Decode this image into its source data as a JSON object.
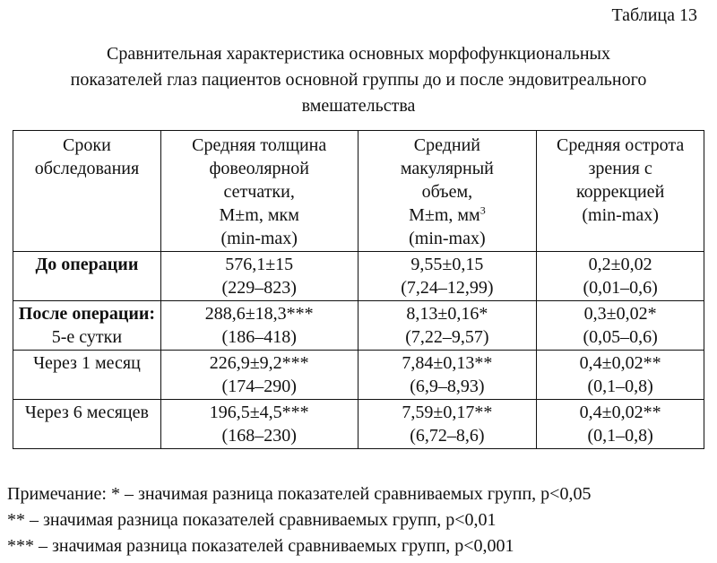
{
  "table_number": "Таблица 13",
  "title_lines": [
    "Сравнительная характеристика основных морфофункциональных",
    "показателей глаз пациентов основной группы до и после эндовитреального",
    "вмешательства"
  ],
  "headers": {
    "col1": [
      "Сроки",
      "обследования"
    ],
    "col2": [
      "Средняя толщина",
      "фовеолярной",
      "сетчатки,",
      "M±m, мкм",
      "(min-max)"
    ],
    "col3": [
      "Средний",
      "макулярный",
      "объем,",
      "M±m, мм",
      "3",
      "(min-max)"
    ],
    "col4": [
      "Средняя острота",
      "зрения с",
      "коррекцией",
      "(min-max)"
    ]
  },
  "rows": [
    {
      "label_bold": "До операции",
      "label_rest": "",
      "thickness": [
        "576,1±15",
        "(229–823)"
      ],
      "volume": [
        "9,55±0,15",
        "(7,24–12,99)"
      ],
      "acuity": [
        "0,2±0,02",
        "(0,01–0,6)"
      ]
    },
    {
      "label_bold": "После операции:",
      "label_rest": "5-е сутки",
      "thickness": [
        "288,6±18,3***",
        "(186–418)"
      ],
      "volume": [
        "8,13±0,16*",
        "(7,22–9,57)"
      ],
      "acuity": [
        "0,3±0,02*",
        "(0,05–0,6)"
      ]
    },
    {
      "label_bold": "",
      "label_rest": "Через 1 месяц",
      "thickness": [
        "226,9±9,2***",
        "(174–290)"
      ],
      "volume": [
        "7,84±0,13**",
        "(6,9–8,93)"
      ],
      "acuity": [
        "0,4±0,02**",
        "(0,1–0,8)"
      ]
    },
    {
      "label_bold": "",
      "label_rest": "Через 6 месяцев",
      "thickness": [
        "196,5±4,5***",
        "(168–230)"
      ],
      "volume": [
        "7,59±0,17**",
        "(6,72–8,6)"
      ],
      "acuity": [
        "0,4±0,02**",
        "(0,1–0,8)"
      ]
    }
  ],
  "notes": [
    "Примечание: * – значимая разница показателей сравниваемых групп, р<0,05",
    "** – значимая разница показателей сравниваемых групп, р<0,01",
    "*** – значимая разница показателей сравниваемых групп, р<0,001"
  ]
}
